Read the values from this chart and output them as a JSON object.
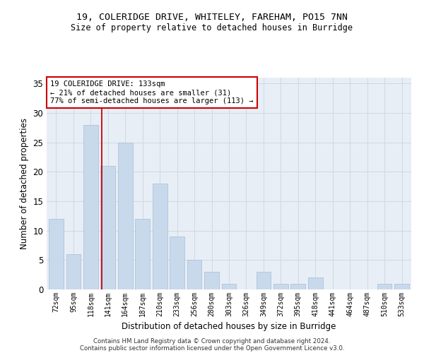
{
  "title_line1": "19, COLERIDGE DRIVE, WHITELEY, FAREHAM, PO15 7NN",
  "title_line2": "Size of property relative to detached houses in Burridge",
  "xlabel": "Distribution of detached houses by size in Burridge",
  "ylabel": "Number of detached properties",
  "categories": [
    "72sqm",
    "95sqm",
    "118sqm",
    "141sqm",
    "164sqm",
    "187sqm",
    "210sqm",
    "233sqm",
    "256sqm",
    "280sqm",
    "303sqm",
    "326sqm",
    "349sqm",
    "372sqm",
    "395sqm",
    "418sqm",
    "441sqm",
    "464sqm",
    "487sqm",
    "510sqm",
    "533sqm"
  ],
  "values": [
    12,
    6,
    28,
    21,
    25,
    12,
    18,
    9,
    5,
    3,
    1,
    0,
    3,
    1,
    1,
    2,
    0,
    0,
    0,
    1,
    1
  ],
  "bar_color": "#c8d9ec",
  "bar_edge_color": "#a8bdd4",
  "grid_color": "#d0d8e4",
  "background_color": "#e8eef6",
  "vline_color": "#cc0000",
  "annotation_text": "19 COLERIDGE DRIVE: 133sqm\n← 21% of detached houses are smaller (31)\n77% of semi-detached houses are larger (113) →",
  "annotation_box_color": "#ffffff",
  "annotation_box_edge": "#cc0000",
  "footer_line1": "Contains HM Land Registry data © Crown copyright and database right 2024.",
  "footer_line2": "Contains public sector information licensed under the Open Government Licence v3.0.",
  "ylim": [
    0,
    36
  ],
  "yticks": [
    0,
    5,
    10,
    15,
    20,
    25,
    30,
    35
  ]
}
